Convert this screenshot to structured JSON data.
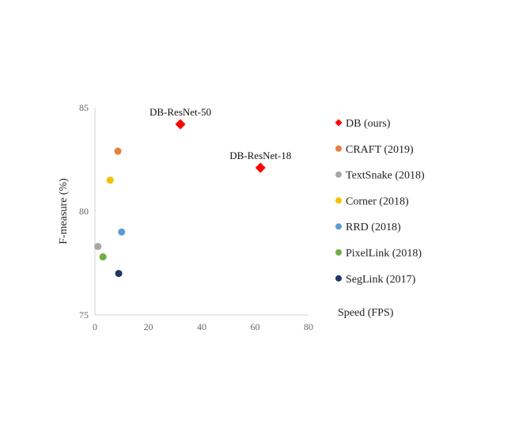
{
  "chart_data": {
    "type": "scatter",
    "xlabel": "Speed (FPS)",
    "ylabel": "F-measure (%)",
    "xlim": [
      0,
      80
    ],
    "ylim": [
      75,
      85
    ],
    "xticks": [
      0,
      20,
      40,
      60,
      80
    ],
    "yticks": [
      75,
      80,
      85
    ],
    "grid": false,
    "legend_position": "right",
    "series": [
      {
        "name": "DB (ours)",
        "color": "#ff0000",
        "marker": "diamond",
        "points": [
          {
            "x": 32,
            "y": 84.2,
            "label": "DB-ResNet-50"
          },
          {
            "x": 62,
            "y": 82.1,
            "label": "DB-ResNet-18"
          }
        ]
      },
      {
        "name": "CRAFT (2019)",
        "color": "#e87d3e",
        "marker": "circle",
        "points": [
          {
            "x": 8.6,
            "y": 82.9
          }
        ]
      },
      {
        "name": "TextSnake (2018)",
        "color": "#a6a6a6",
        "marker": "circle",
        "points": [
          {
            "x": 1.1,
            "y": 78.3
          }
        ]
      },
      {
        "name": "Corner (2018)",
        "color": "#f5c000",
        "marker": "circle",
        "points": [
          {
            "x": 5.7,
            "y": 81.5
          }
        ]
      },
      {
        "name": "RRD (2018)",
        "color": "#5b9bd5",
        "marker": "circle",
        "points": [
          {
            "x": 10,
            "y": 79.0
          }
        ]
      },
      {
        "name": "PixelLink (2018)",
        "color": "#70ad47",
        "marker": "circle",
        "points": [
          {
            "x": 3,
            "y": 77.8
          }
        ]
      },
      {
        "name": "SegLink (2017)",
        "color": "#1f3864",
        "marker": "circle",
        "points": [
          {
            "x": 8.9,
            "y": 77.0
          }
        ]
      }
    ]
  }
}
